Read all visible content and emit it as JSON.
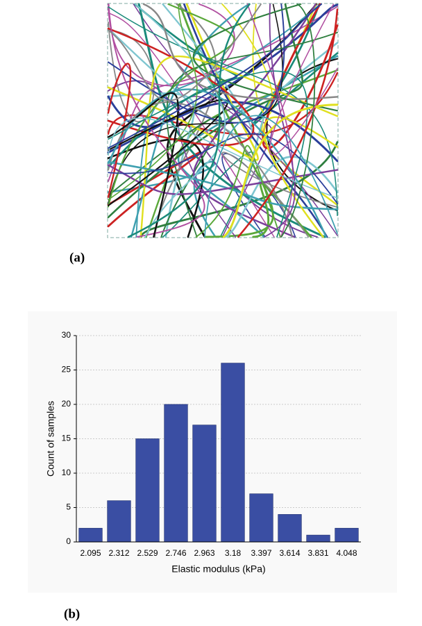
{
  "panel_a": {
    "label": "(a)"
  },
  "panel_b": {
    "label": "(b)"
  },
  "chart_data": {
    "type": "bar",
    "categories": [
      "2.095",
      "2.312",
      "2.529",
      "2.746",
      "2.963",
      "3.18",
      "3.397",
      "3.614",
      "3.831",
      "4.048"
    ],
    "values": [
      2,
      6,
      15,
      20,
      17,
      26,
      7,
      4,
      1,
      2
    ],
    "color": "#3a4ea3",
    "xlabel": "Elastic modulus (kPa)",
    "ylabel": "Count of samples",
    "ylim": [
      0,
      30
    ],
    "yticks": [
      0,
      5,
      10,
      15,
      20,
      25,
      30
    ],
    "grid": true
  }
}
